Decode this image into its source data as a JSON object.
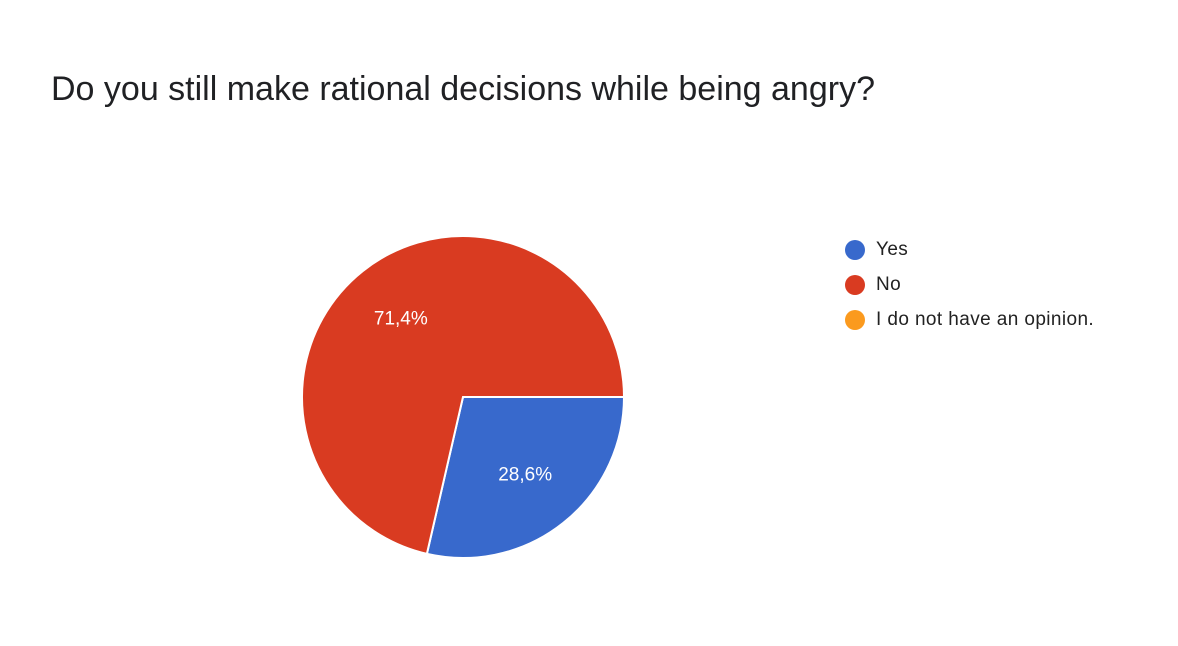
{
  "chart_data": {
    "type": "pie",
    "title": "Do you still make rational decisions while being angry?",
    "categories": [
      "Yes",
      "No",
      "I do not have an opinion."
    ],
    "values": [
      28.6,
      71.4,
      0
    ],
    "value_labels": [
      "28,6%",
      "71,4%",
      ""
    ],
    "colors": [
      "#3869cc",
      "#d93b21",
      "#fb9a1e"
    ],
    "legend_position": "right"
  }
}
